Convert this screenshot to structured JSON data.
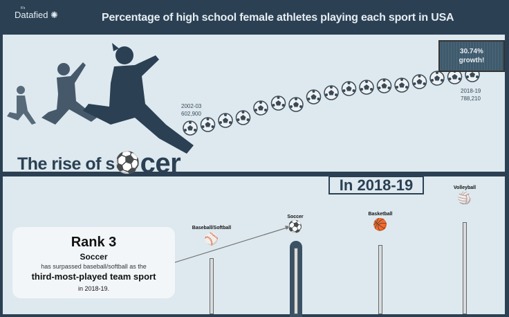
{
  "header": {
    "logo": "Datafied",
    "logo_prefix": "It's",
    "title": "Percentage of high school female athletes playing each sport in USA"
  },
  "hero": {
    "heading_prefix": "The rise of s",
    "heading_suffix": "cer",
    "start": {
      "season": "2002-03",
      "value": "602,900"
    },
    "end": {
      "season": "2018-19",
      "value": "788,210"
    },
    "growth_line1": "30.74%",
    "growth_line2": "growth!",
    "ball_count": 17
  },
  "ranking": {
    "year_label": "In 2018-19",
    "callout": {
      "rank": "Rank 3",
      "sport": "Soccer",
      "line1": "has surpassed baseball/softball as the",
      "line2": "third-most-played team sport",
      "line3": "in 2018-19."
    },
    "sports": [
      {
        "name": "Baseball/Softball",
        "icon": "baseball-icon"
      },
      {
        "name": "Soccer",
        "icon": "soccer-ball-icon",
        "highlight": true
      },
      {
        "name": "Basketball",
        "icon": "basketball-icon"
      },
      {
        "name": "Volleyball",
        "icon": "volleyball-icon"
      }
    ]
  },
  "colors": {
    "background": "#2b4053",
    "panel": "#dde9ef",
    "accent": "#2b4053"
  }
}
